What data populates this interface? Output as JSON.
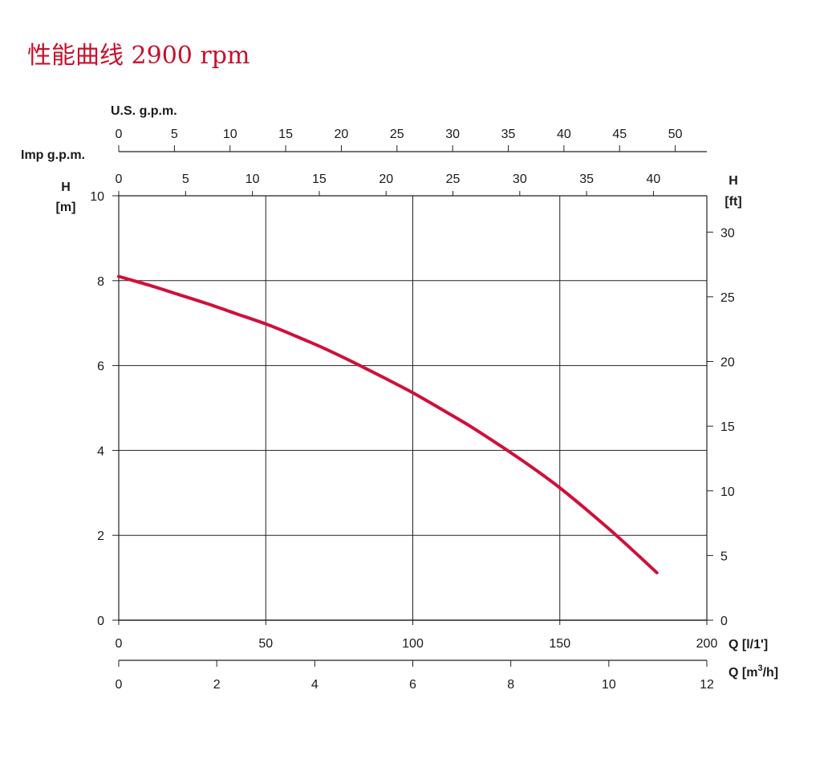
{
  "title": "性能曲线 2900 rpm",
  "colors": {
    "curve": "#d0103a",
    "title": "#c8102e",
    "grid": "#222222"
  },
  "chart_data": {
    "type": "line",
    "title": "性能曲线 2900 rpm",
    "grid": true,
    "axes": {
      "x_primary": {
        "label": "Q [l/1']",
        "range": [
          0,
          200
        ],
        "ticks": [
          "0",
          "50",
          "100",
          "150",
          "200"
        ]
      },
      "x_secondary": {
        "label_prefix": "Q [m",
        "label_sup": "3",
        "label_suffix": "/h]",
        "range": [
          0,
          12
        ],
        "ticks": [
          "0",
          "2",
          "4",
          "6",
          "8",
          "10",
          "12"
        ]
      },
      "x_us_gpm": {
        "label": "U.S. g.p.m.",
        "ticks": [
          "0",
          "5",
          "10",
          "15",
          "20",
          "25",
          "30",
          "35",
          "40",
          "45",
          "50"
        ],
        "lpm_per_unit": 3.785
      },
      "x_imp_gpm": {
        "label": "Imp g.p.m.",
        "ticks": [
          "0",
          "5",
          "10",
          "15",
          "20",
          "25",
          "30",
          "35",
          "40"
        ],
        "lpm_per_unit": 4.546
      },
      "y_left": {
        "label_top": "H",
        "label_bottom": "[m]",
        "range": [
          0,
          10
        ],
        "ticks": [
          "0",
          "2",
          "4",
          "6",
          "8",
          "10"
        ]
      },
      "y_right": {
        "label_top": "H",
        "label_bottom": "[ft]",
        "ticks": [
          "0",
          "5",
          "10",
          "15",
          "20",
          "25",
          "30"
        ],
        "m_per_unit": 0.3048
      }
    },
    "series": [
      {
        "x": [
          0,
          10,
          20,
          30,
          40,
          50,
          60,
          70,
          80,
          90,
          100,
          110,
          120,
          130,
          140,
          150,
          160,
          170,
          183
        ],
        "y": [
          8.1,
          7.9,
          7.68,
          7.46,
          7.22,
          6.98,
          6.7,
          6.4,
          6.07,
          5.72,
          5.36,
          4.96,
          4.55,
          4.1,
          3.63,
          3.12,
          2.55,
          1.95,
          1.12
        ]
      }
    ]
  }
}
